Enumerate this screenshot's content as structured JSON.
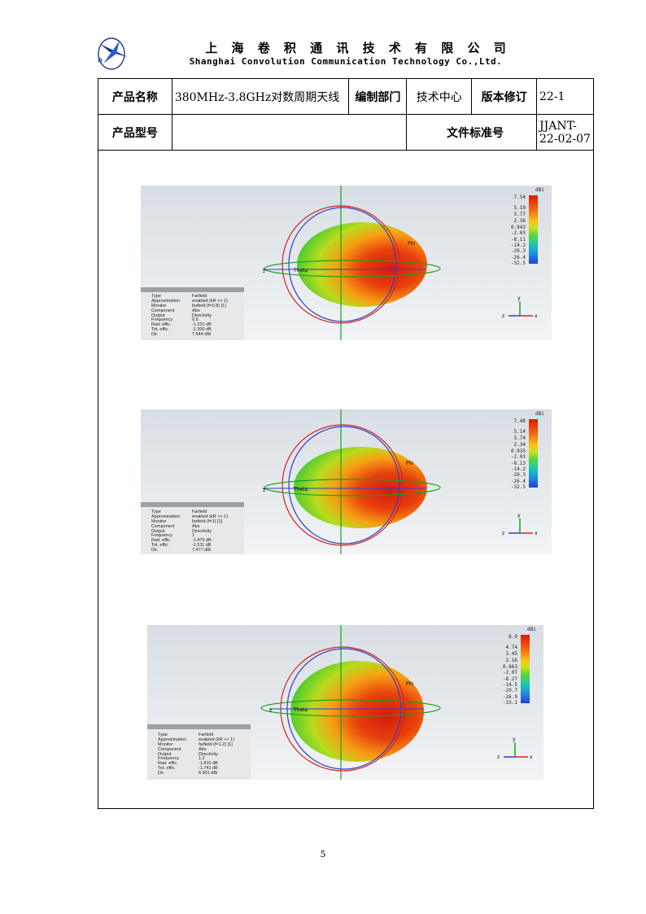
{
  "header": {
    "company_cn": "上 海 卷 积 通 讯 技 术 有 限 公 司",
    "company_en": "Shanghai Convolution Communication Technology Co.,Ltd."
  },
  "table": {
    "product_name_label": "产品名称",
    "product_name": "380MHz-3.8GHz对数周期天线",
    "dept_label": "编制部门",
    "dept": "技术中心",
    "revision_label": "版本修订",
    "revision": "22-1",
    "model_label": "产品型号",
    "model": "",
    "std_label": "文件标准号",
    "std": "JJANT-22-02-07"
  },
  "plots": [
    {
      "unit": "dBi",
      "scale": [
        "7.54",
        "5.19",
        "3.77",
        "2.36",
        "0.943",
        "-2.03",
        "-8.11",
        "-14.2",
        "-20.3",
        "-26.4",
        "-32.5"
      ],
      "info_keys": [
        "Type",
        "Approximation",
        "Monitor",
        "Component",
        "Output",
        "Frequency",
        "Rad. effic.",
        "Tot. effic.",
        "Dir."
      ],
      "info_vals": [
        "Farfield",
        "enabled (kR >> 1)",
        "farfield (f=0.8) [1]",
        "Abs",
        "Directivity",
        "0.8",
        "-1.231 dB",
        "-1.300 dB",
        "7.544 dBi"
      ],
      "theta": "Theta",
      "phi": "Phi",
      "axis_x": "x",
      "axis_y": "y",
      "axis_z": "z"
    },
    {
      "unit": "dBi",
      "scale": [
        "7.48",
        "5.14",
        "3.74",
        "2.34",
        "0.935",
        "-2.03",
        "-8.13",
        "-14.2",
        "-20.3",
        "-26.4",
        "-32.5"
      ],
      "info_keys": [
        "Type",
        "Approximation",
        "Monitor",
        "Component",
        "Output",
        "Frequency",
        "Rad. effic.",
        "Tot. effic.",
        "Dir."
      ],
      "info_vals": [
        "Farfield",
        "enabled (kR >> 1)",
        "farfield (f=1) [1]",
        "Abs",
        "Directivity",
        "1",
        "-1.470 dB",
        "-1.511 dB",
        "7.477 dBi"
      ],
      "theta": "Theta",
      "phi": "Phi",
      "axis_x": "x",
      "axis_y": "y",
      "axis_z": "z"
    },
    {
      "unit": "dBi",
      "scale": [
        "6.9",
        "4.74",
        "3.45",
        "2.16",
        "0.863",
        "-2.07",
        "-8.27",
        "-14.5",
        "-20.7",
        "-26.9",
        "-33.1"
      ],
      "info_keys": [
        "Type",
        "Approximation",
        "Monitor",
        "Component",
        "Output",
        "Frequency",
        "Rad. effic.",
        "Tot. effic.",
        "Dir."
      ],
      "info_vals": [
        "Farfield",
        "enabled (kR >> 1)",
        "farfield (f=1.2) [1]",
        "Abs",
        "Directivity",
        "1.2",
        "-1.810 dB",
        "-1.741 dB",
        "6.901 dBi"
      ],
      "theta": "Theta",
      "phi": "Phi",
      "axis_x": "x",
      "axis_y": "y",
      "axis_z": "z"
    }
  ],
  "page_number": "5"
}
